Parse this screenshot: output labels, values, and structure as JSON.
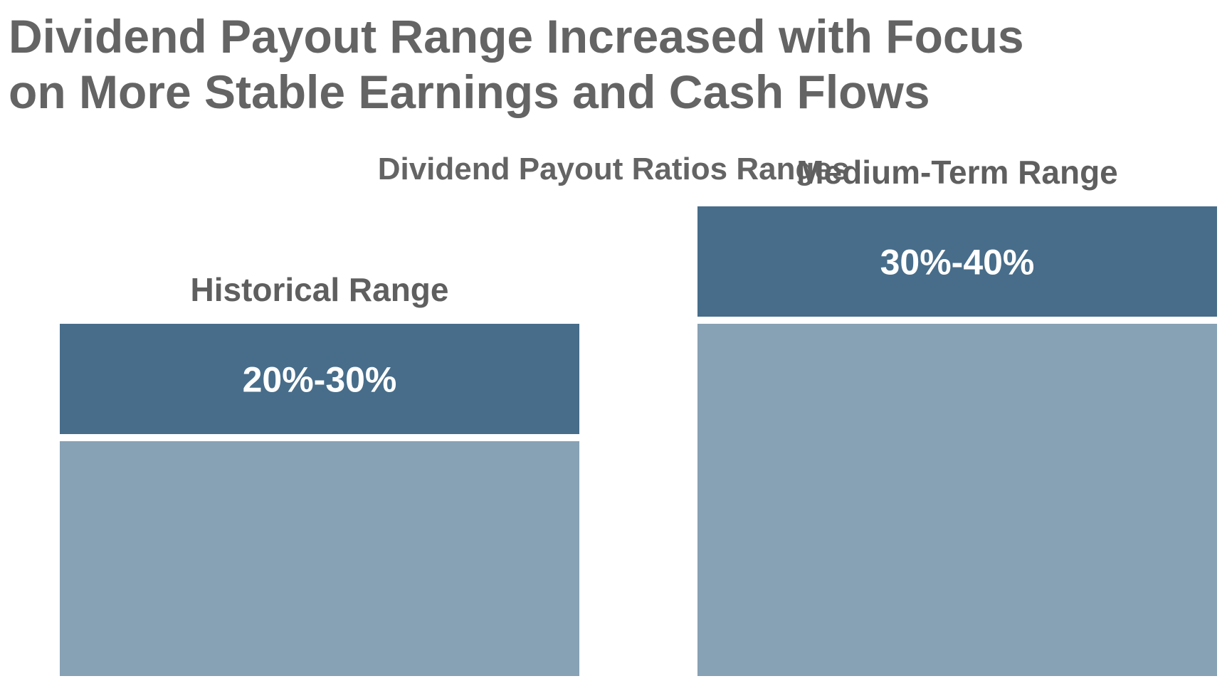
{
  "page": {
    "title": "Dividend Payout Range Increased with Focus\non More Stable Earnings and Cash Flows"
  },
  "chart_data": {
    "type": "bar",
    "title": "Dividend Payout Ratios Ranges",
    "categories": [
      "Historical Range",
      "Medium-Term Range"
    ],
    "series": [
      {
        "values": [
          20,
          30
        ]
      },
      {
        "values": [
          10,
          10
        ]
      }
    ],
    "band_labels": [
      "20%-30%",
      "30%-40%"
    ],
    "ranges": [
      {
        "category": "Historical Range",
        "low": 20,
        "high": 30
      },
      {
        "category": "Medium-Term Range",
        "low": 30,
        "high": 40
      }
    ],
    "stacked": true,
    "colors": {
      "base": "#87a1b5",
      "band": "#476d8a",
      "title_text": "#646464",
      "band_text": "#ffffff"
    },
    "ylim": [
      0,
      40
    ],
    "grid": false,
    "legend": "none"
  }
}
